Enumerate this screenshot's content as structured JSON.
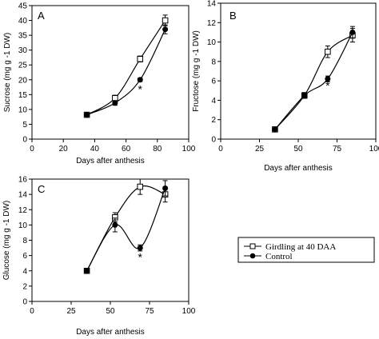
{
  "chart_data": [
    {
      "type": "line",
      "panel_label": "A",
      "xlabel": "Days after anthesis",
      "ylabel": "Sucrose (mg g -1 DW)",
      "xlim": [
        0,
        100
      ],
      "ylim": [
        0,
        45
      ],
      "xticks": [
        0,
        20,
        40,
        60,
        80,
        100
      ],
      "yticks": [
        0,
        5,
        10,
        15,
        20,
        25,
        30,
        35,
        40,
        45
      ],
      "series": [
        {
          "name": "Girdling at 40 DAA",
          "marker": "open-square",
          "x": [
            35,
            53,
            69,
            85
          ],
          "y": [
            8.2,
            13.8,
            27,
            40
          ],
          "err": [
            0.4,
            1,
            1,
            1.8
          ]
        },
        {
          "name": "Control",
          "marker": "filled-circle",
          "x": [
            35,
            53,
            69,
            85
          ],
          "y": [
            8.2,
            12.2,
            20,
            37
          ],
          "err": [
            0.4,
            0.8,
            0.6,
            1.5
          ]
        }
      ],
      "annotations": [
        {
          "text": "*",
          "x": 69,
          "y": 15.5
        }
      ]
    },
    {
      "type": "line",
      "panel_label": "B",
      "xlabel": "Days after anthesis",
      "ylabel": "Fructose (mg g -1 DW)",
      "xlim": [
        0,
        100
      ],
      "ylim": [
        0,
        14
      ],
      "xticks": [
        0,
        25,
        50,
        75,
        100
      ],
      "yticks": [
        0,
        2,
        4,
        6,
        8,
        10,
        12,
        14
      ],
      "series": [
        {
          "name": "Girdling at 40 DAA",
          "marker": "open-square",
          "x": [
            35,
            54,
            69,
            85
          ],
          "y": [
            1,
            4.5,
            9,
            10.7
          ],
          "err": [
            0.1,
            0.3,
            0.6,
            0.7
          ]
        },
        {
          "name": "Control",
          "marker": "filled-circle",
          "x": [
            35,
            54,
            69,
            85
          ],
          "y": [
            1,
            4.5,
            6.2,
            11
          ],
          "err": [
            0.1,
            0.2,
            0.3,
            0.6
          ]
        }
      ],
      "annotations": [
        {
          "text": "*",
          "x": 69,
          "y": 5.1
        }
      ]
    },
    {
      "type": "line",
      "panel_label": "C",
      "xlabel": "Days after anthesis",
      "ylabel": "Glucose (mg g -1 DW)",
      "xlim": [
        0,
        100
      ],
      "ylim": [
        0,
        16
      ],
      "xticks": [
        0,
        25,
        50,
        75,
        100
      ],
      "yticks": [
        0,
        2,
        4,
        6,
        8,
        10,
        12,
        14,
        16
      ],
      "series": [
        {
          "name": "Girdling at 40 DAA",
          "marker": "open-square",
          "x": [
            35,
            53,
            69,
            85
          ],
          "y": [
            4,
            11,
            15,
            14
          ],
          "err": [
            0.2,
            0.6,
            1,
            1
          ]
        },
        {
          "name": "Control",
          "marker": "filled-circle",
          "x": [
            35,
            53,
            69,
            85
          ],
          "y": [
            4,
            10,
            7,
            14.8
          ],
          "err": [
            0.2,
            0.9,
            0.4,
            1
          ]
        }
      ],
      "annotations": [
        {
          "text": "*",
          "x": 69,
          "y": 5.3
        }
      ]
    }
  ],
  "legend": {
    "placement": "right of panel C",
    "entries": [
      {
        "label": "Girdling at 40 DAA",
        "marker": "open-square"
      },
      {
        "label": "Control",
        "marker": "filled-circle"
      }
    ]
  }
}
